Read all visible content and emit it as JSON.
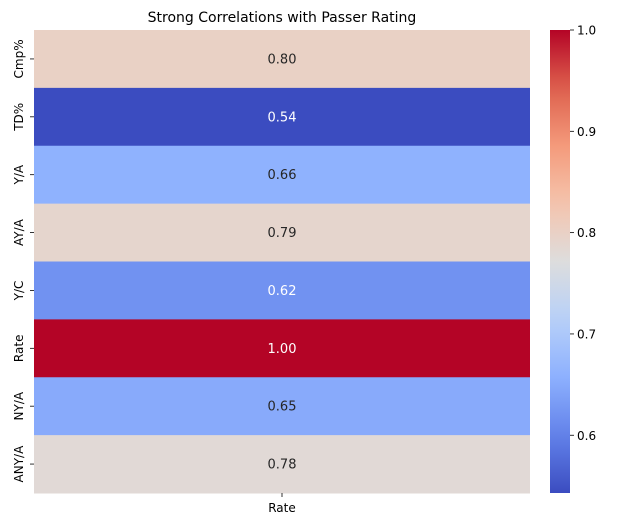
{
  "chart_data": {
    "type": "heatmap",
    "title": "Strong Correlations with Passer Rating",
    "xlabel": "",
    "ylabel": "",
    "columns": [
      "Rate"
    ],
    "rows": [
      "Cmp%",
      "TD%",
      "Y/A",
      "AY/A",
      "Y/C",
      "Rate",
      "NY/A",
      "ANY/A"
    ],
    "values": [
      0.8,
      0.54,
      0.66,
      0.79,
      0.62,
      1.0,
      0.65,
      0.78
    ],
    "annotations": [
      "0.80",
      "0.54",
      "0.66",
      "0.79",
      "0.62",
      "1.00",
      "0.65",
      "0.78"
    ],
    "colormap": "coolwarm",
    "colorbar": {
      "range": [
        0.543,
        1.0
      ],
      "ticks": [
        0.6,
        0.7,
        0.8,
        0.9,
        1.0
      ],
      "tick_labels": [
        "0.6",
        "0.7",
        "0.8",
        "0.9",
        "1.0"
      ],
      "placement": "right"
    },
    "colors": {
      "low": "#3b4cc0",
      "mid": "#dddddd",
      "high": "#b40426",
      "text_dark": "#262626",
      "text_light": "#ffffff"
    }
  }
}
